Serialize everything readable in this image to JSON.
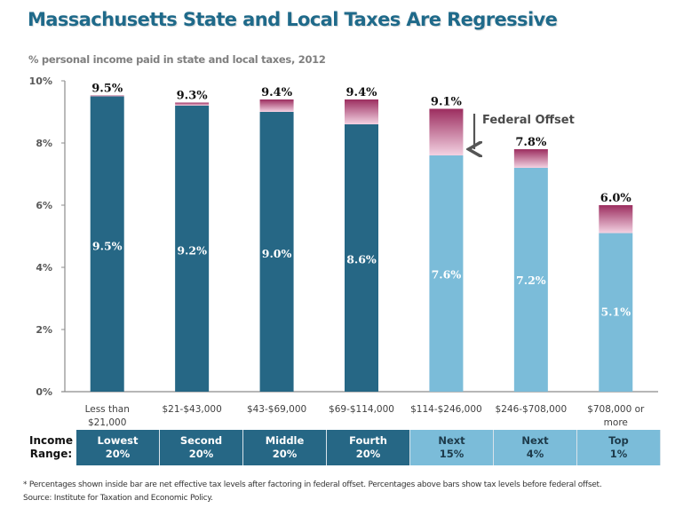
{
  "title": "Massachusetts State and Local Taxes Are Regressive",
  "subtitle": "% personal income paid in state and local taxes, 2012",
  "annotation": "Federal Offset",
  "colors": {
    "title": "#1f6a8a",
    "bar_dark": "#266785",
    "bar_light": "#7bbcd9",
    "offset_top": "#9c2d5f",
    "offset_bottom": "#f3d2e2"
  },
  "income_range": {
    "label_line1": "Income",
    "label_line2": "Range:",
    "groups": [
      {
        "line1": "Lowest",
        "line2": "20%",
        "tone": "dark"
      },
      {
        "line1": "Second",
        "line2": "20%",
        "tone": "dark"
      },
      {
        "line1": "Middle",
        "line2": "20%",
        "tone": "dark"
      },
      {
        "line1": "Fourth",
        "line2": "20%",
        "tone": "dark"
      },
      {
        "line1": "Next",
        "line2": "15%",
        "tone": "light"
      },
      {
        "line1": "Next",
        "line2": "4%",
        "tone": "light"
      },
      {
        "line1": "Top",
        "line2": "1%",
        "tone": "light"
      }
    ]
  },
  "footnote": {
    "line1": "* Percentages shown inside bar are net effective tax levels after factoring in federal offset. Percentages above bars show  tax levels before federal offset.",
    "line2": "Source: Institute for Taxation and Economic Policy."
  },
  "chart_data": {
    "type": "bar",
    "stacked": true,
    "title": "Massachusetts State and Local Taxes Are Regressive",
    "subtitle": "% personal income paid in state and local taxes, 2012",
    "xlabel": "",
    "ylabel": "",
    "ylim": [
      0,
      10
    ],
    "yticks": [
      0,
      2,
      4,
      6,
      8,
      10
    ],
    "ytick_labels": [
      "0%",
      "2%",
      "4%",
      "6%",
      "8%",
      "10%"
    ],
    "grid": false,
    "categories": [
      [
        "Less than",
        "$21,000"
      ],
      [
        "$21-$43,000"
      ],
      [
        "$43-$69,000"
      ],
      [
        "$69-$114,000"
      ],
      [
        "$114-$246,000"
      ],
      [
        "$246-$708,000"
      ],
      [
        "$708,000 or",
        "more"
      ]
    ],
    "series": [
      {
        "name": "Net effective tax (after federal offset)",
        "values": [
          9.5,
          9.2,
          9.0,
          8.6,
          7.6,
          7.2,
          5.1
        ],
        "labels": [
          "9.5%",
          "9.2%",
          "9.0%",
          "8.6%",
          "7.6%",
          "7.2%",
          "5.1%"
        ]
      },
      {
        "name": "Federal offset",
        "values": [
          0.0,
          0.1,
          0.4,
          0.8,
          1.5,
          0.6,
          0.9
        ]
      }
    ],
    "totals": [
      9.5,
      9.3,
      9.4,
      9.4,
      9.1,
      7.8,
      6.0
    ],
    "total_labels": [
      "9.5%",
      "9.3%",
      "9.4%",
      "9.4%",
      "9.1%",
      "7.8%",
      "6.0%"
    ],
    "bar_tones": [
      "dark",
      "dark",
      "dark",
      "dark",
      "light",
      "light",
      "light"
    ],
    "annotations": [
      {
        "text": "Federal Offset",
        "arrow": "down",
        "near_category": 4
      }
    ]
  }
}
